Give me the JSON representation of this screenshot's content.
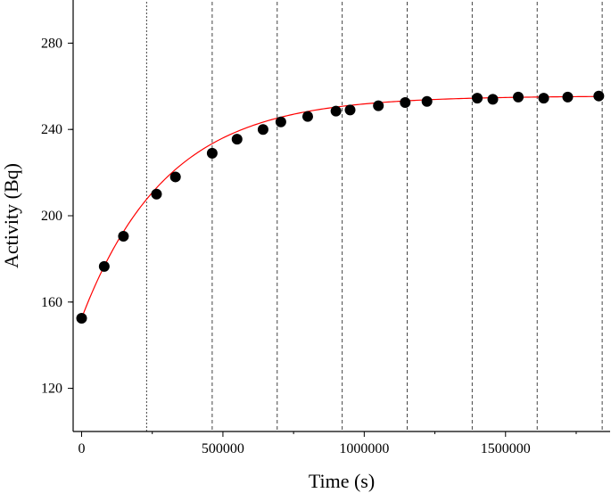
{
  "chart_data": {
    "type": "scatter",
    "title": "",
    "xlabel": "Time (s)",
    "ylabel": "Activity (Bq)",
    "xlim": [
      -30000,
      1870000
    ],
    "ylim": [
      100,
      300
    ],
    "x_ticks": [
      0,
      500000,
      1000000,
      1500000
    ],
    "x_tick_labels": [
      "0",
      "500000",
      "1000000",
      "1500000"
    ],
    "y_ticks": [
      120,
      160,
      200,
      240,
      280
    ],
    "y_tick_labels": [
      "120",
      "160",
      "200",
      "240",
      "280"
    ],
    "grid": false,
    "legend": "none",
    "vertical_reference_lines_x": [
      230000,
      462000,
      692000,
      922000,
      1152000,
      1382000,
      1612000,
      1842000
    ],
    "series": [
      {
        "kind": "points",
        "color": "#000000",
        "x": [
          0,
          80000,
          148000,
          265000,
          332000,
          462000,
          550000,
          642000,
          705000,
          800000,
          900000,
          950000,
          1050000,
          1145000,
          1222000,
          1400000,
          1455000,
          1545000,
          1635000,
          1720000,
          1830000
        ],
        "y": [
          152.5,
          176.5,
          190.5,
          210,
          218,
          229,
          235.5,
          240,
          243.5,
          246,
          248.5,
          249,
          251,
          252.5,
          253,
          254.5,
          254,
          255,
          254.5,
          255,
          255.5
        ]
      },
      {
        "kind": "fit-curve",
        "color": "#ff0000",
        "model": "y = 255.5 - 103 * exp(-x / 300000)",
        "y_inf": 255.5,
        "amplitude": 103,
        "tau": 300000,
        "x_range": [
          0,
          1840000
        ]
      }
    ]
  }
}
